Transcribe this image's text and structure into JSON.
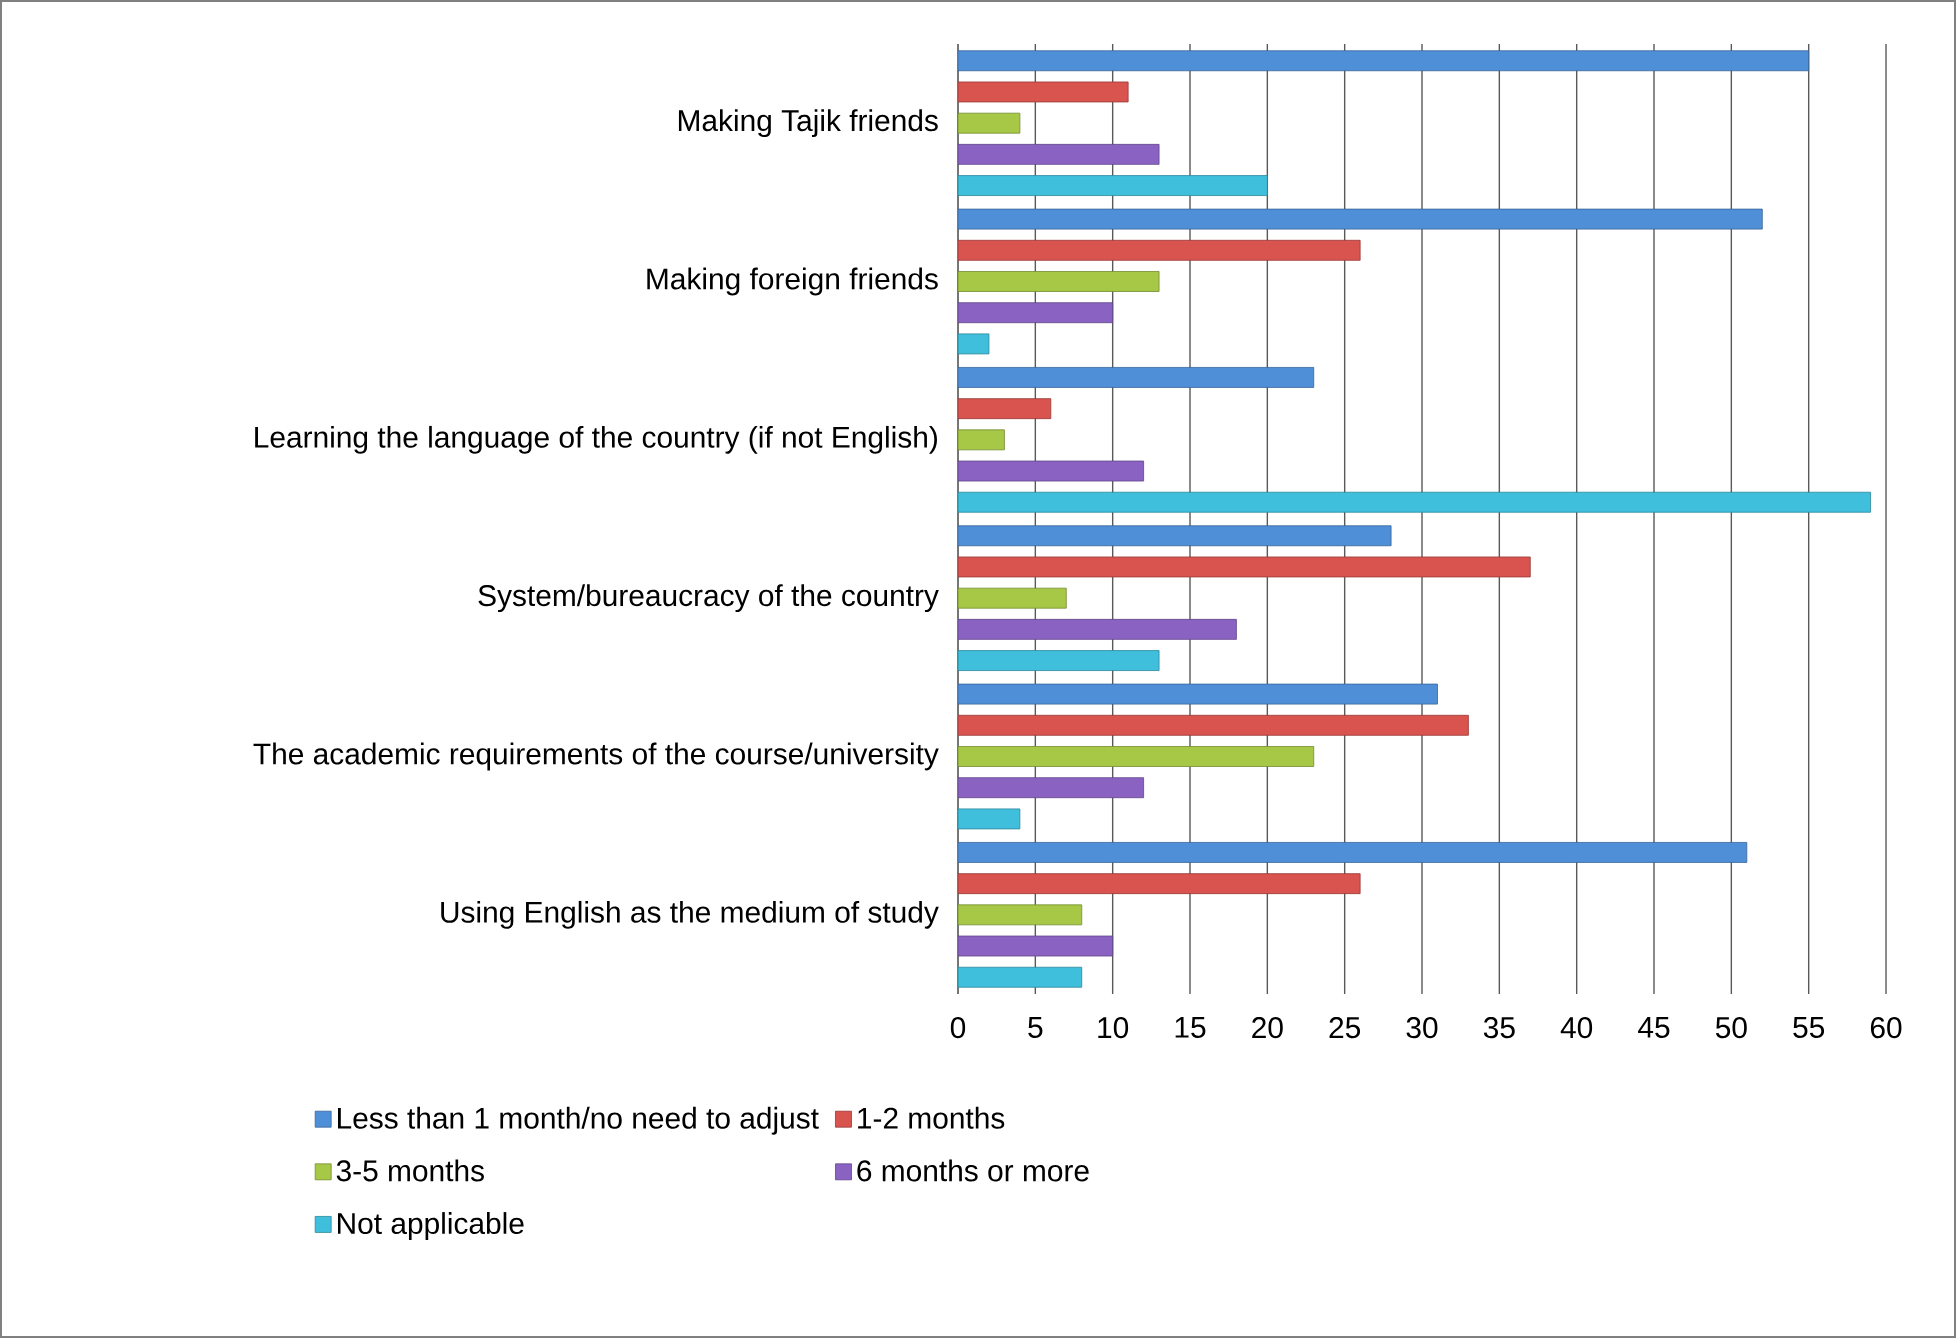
{
  "chart_data": {
    "type": "bar",
    "orientation": "horizontal",
    "categories": [
      "Making Tajik friends",
      "Making foreign friends",
      "Learning the language of the country (if not English)",
      "System/bureaucracy of the country",
      "The academic requirements of the course/university",
      "Using English as the medium of study"
    ],
    "series": [
      {
        "name": "Less than 1 month/no need to adjust",
        "color": "#4f8fd8",
        "values": [
          55,
          52,
          23,
          28,
          31,
          51
        ]
      },
      {
        "name": "1-2 months",
        "color": "#d9534f",
        "values": [
          11,
          26,
          6,
          37,
          33,
          26
        ]
      },
      {
        "name": "3-5 months",
        "color": "#a6c846",
        "values": [
          4,
          13,
          3,
          7,
          23,
          8
        ]
      },
      {
        "name": "6 months or more",
        "color": "#8a63c2",
        "values": [
          13,
          10,
          12,
          18,
          12,
          10
        ]
      },
      {
        "name": "Not applicable",
        "color": "#3fbfdc",
        "values": [
          20,
          2,
          59,
          13,
          4,
          8
        ]
      }
    ],
    "xlim": [
      0,
      60
    ],
    "xticks": [
      0,
      5,
      10,
      15,
      20,
      25,
      30,
      35,
      40,
      45,
      50,
      55,
      60
    ],
    "grid": "x",
    "legend": "bottom"
  }
}
